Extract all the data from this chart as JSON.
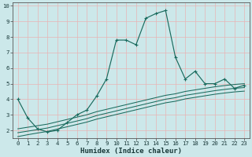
{
  "xlabel": "Humidex (Indice chaleur)",
  "bg_color": "#cce8ea",
  "grid_color": "#e8b4b4",
  "line_color": "#1a6b5e",
  "xlim": [
    -0.5,
    23.5
  ],
  "ylim": [
    1.5,
    10.2
  ],
  "yticks": [
    2,
    3,
    4,
    5,
    6,
    7,
    8,
    9,
    10
  ],
  "xticks": [
    0,
    1,
    2,
    3,
    4,
    5,
    6,
    7,
    8,
    9,
    10,
    11,
    12,
    13,
    14,
    15,
    16,
    17,
    18,
    19,
    20,
    21,
    22,
    23
  ],
  "x_data": [
    0,
    1,
    2,
    3,
    4,
    5,
    6,
    7,
    8,
    9,
    10,
    11,
    12,
    13,
    14,
    15,
    16,
    17,
    18,
    19,
    20,
    21,
    22,
    23
  ],
  "y_main": [
    4.0,
    2.8,
    2.1,
    1.9,
    2.0,
    2.5,
    3.0,
    3.3,
    4.2,
    5.3,
    7.8,
    7.8,
    7.5,
    9.2,
    9.5,
    9.7,
    6.7,
    5.3,
    5.8,
    5.0,
    5.0,
    5.3,
    4.7,
    4.9
  ],
  "y_line1": [
    2.1,
    2.2,
    2.3,
    2.4,
    2.55,
    2.7,
    2.85,
    3.0,
    3.2,
    3.35,
    3.5,
    3.65,
    3.8,
    3.95,
    4.1,
    4.25,
    4.35,
    4.5,
    4.6,
    4.7,
    4.8,
    4.88,
    4.95,
    5.0
  ],
  "y_line2": [
    1.85,
    1.95,
    2.05,
    2.15,
    2.3,
    2.45,
    2.6,
    2.75,
    2.95,
    3.1,
    3.25,
    3.4,
    3.55,
    3.7,
    3.85,
    4.0,
    4.1,
    4.25,
    4.35,
    4.45,
    4.55,
    4.63,
    4.7,
    4.75
  ],
  "y_line3": [
    1.6,
    1.72,
    1.83,
    1.93,
    2.08,
    2.23,
    2.38,
    2.53,
    2.72,
    2.87,
    3.02,
    3.17,
    3.32,
    3.47,
    3.62,
    3.77,
    3.87,
    4.02,
    4.12,
    4.22,
    4.32,
    4.4,
    4.47,
    4.52
  ]
}
